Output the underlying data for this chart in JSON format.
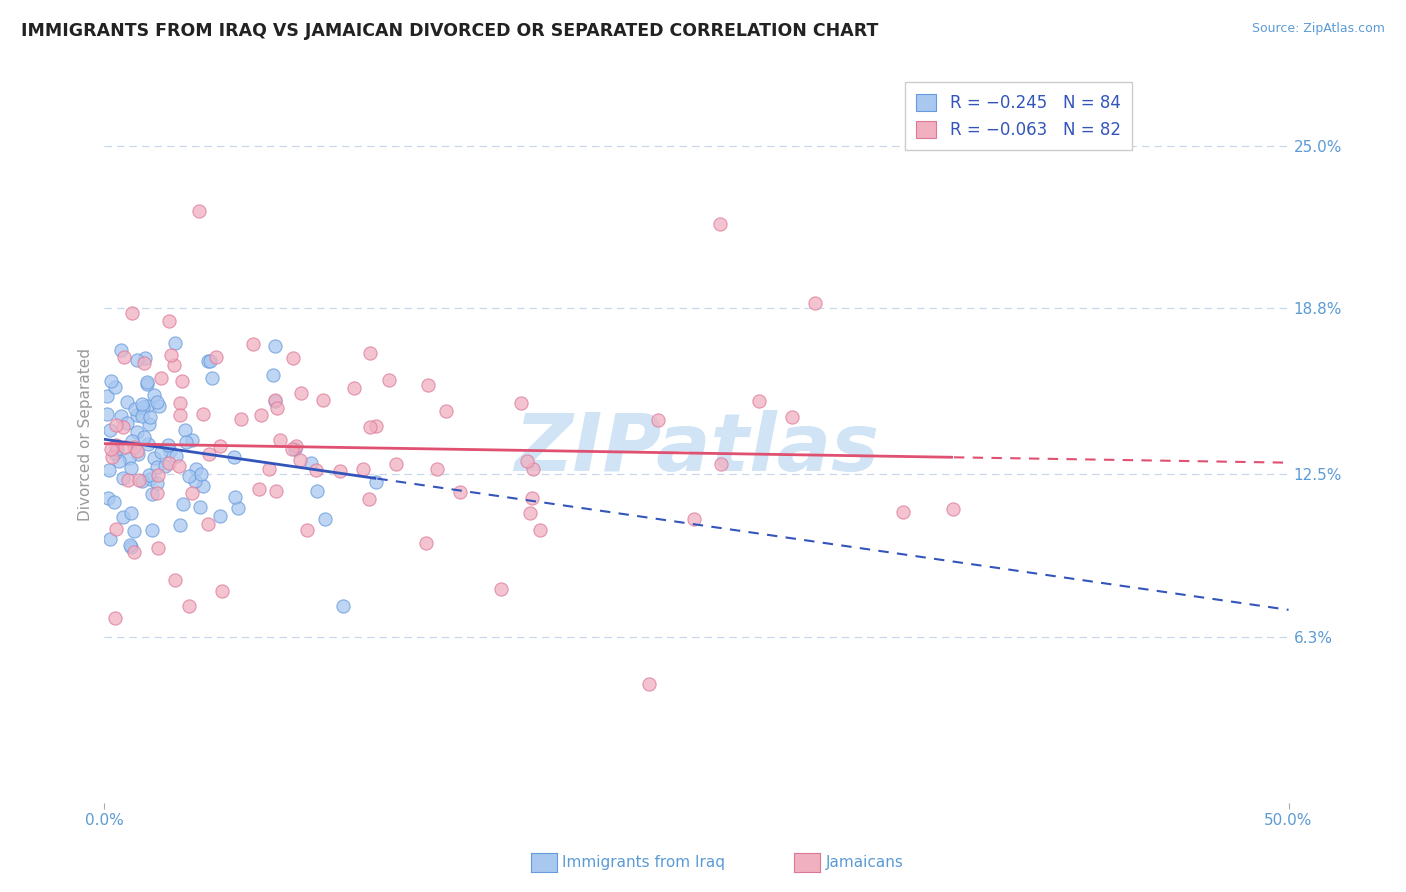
{
  "title": "IMMIGRANTS FROM IRAQ VS JAMAICAN DIVORCED OR SEPARATED CORRELATION CHART",
  "source": "Source: ZipAtlas.com",
  "ylabel": "Divorced or Separated",
  "legend_blue_r": "R = −0.245",
  "legend_blue_n": "N = 84",
  "legend_pink_r": "R = −0.063",
  "legend_pink_n": "N = 82",
  "legend_label_blue": "Immigrants from Iraq",
  "legend_label_pink": "Jamaicans",
  "xmin": 0.0,
  "xmax": 50.0,
  "ymin": 0.0,
  "ymax": 28.0,
  "yticks": [
    6.3,
    12.5,
    18.8,
    25.0
  ],
  "ytick_labels": [
    "6.3%",
    "12.5%",
    "18.8%",
    "25.0%"
  ],
  "xticks": [
    0.0,
    50.0
  ],
  "xtick_labels": [
    "0.0%",
    "50.0%"
  ],
  "blue_color": "#a8c8f0",
  "pink_color": "#f0b0c0",
  "blue_line_color": "#3355bb",
  "pink_line_color": "#e05070",
  "axis_color": "#5b9bd5",
  "grid_color": "#c8d8ec",
  "background_color": "#ffffff",
  "watermark_color": "#d0e4f5"
}
